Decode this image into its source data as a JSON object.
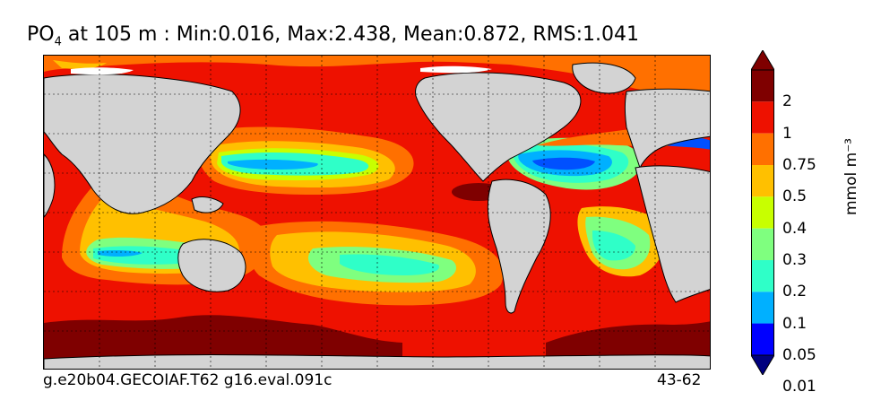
{
  "title": {
    "variable": "PO",
    "variable_subscript": "4",
    "rest": " at 105 m : Min:0.016, Max:2.438, Mean:0.872, RMS:1.041"
  },
  "footer": {
    "case_name": "g.e20b04.GECOIAF.T62 g16.eval.091c",
    "years": "43-62"
  },
  "colorbar": {
    "units": "mmol m⁻³",
    "levels": [
      "2",
      "1",
      "0.75",
      "0.5",
      "0.4",
      "0.3",
      "0.2",
      "0.1",
      "0.05",
      "0.01"
    ],
    "colors": [
      "#7f0000",
      "#ee1100",
      "#ff7000",
      "#ffc000",
      "#c8ff00",
      "#7fff7f",
      "#2fffc8",
      "#00b0ff",
      "#0050ff",
      "#0000ff",
      "#00007f"
    ]
  },
  "map": {
    "land_color": "#d3d3d3",
    "ice_color": "#ffffff",
    "gridlines": "dotted"
  }
}
